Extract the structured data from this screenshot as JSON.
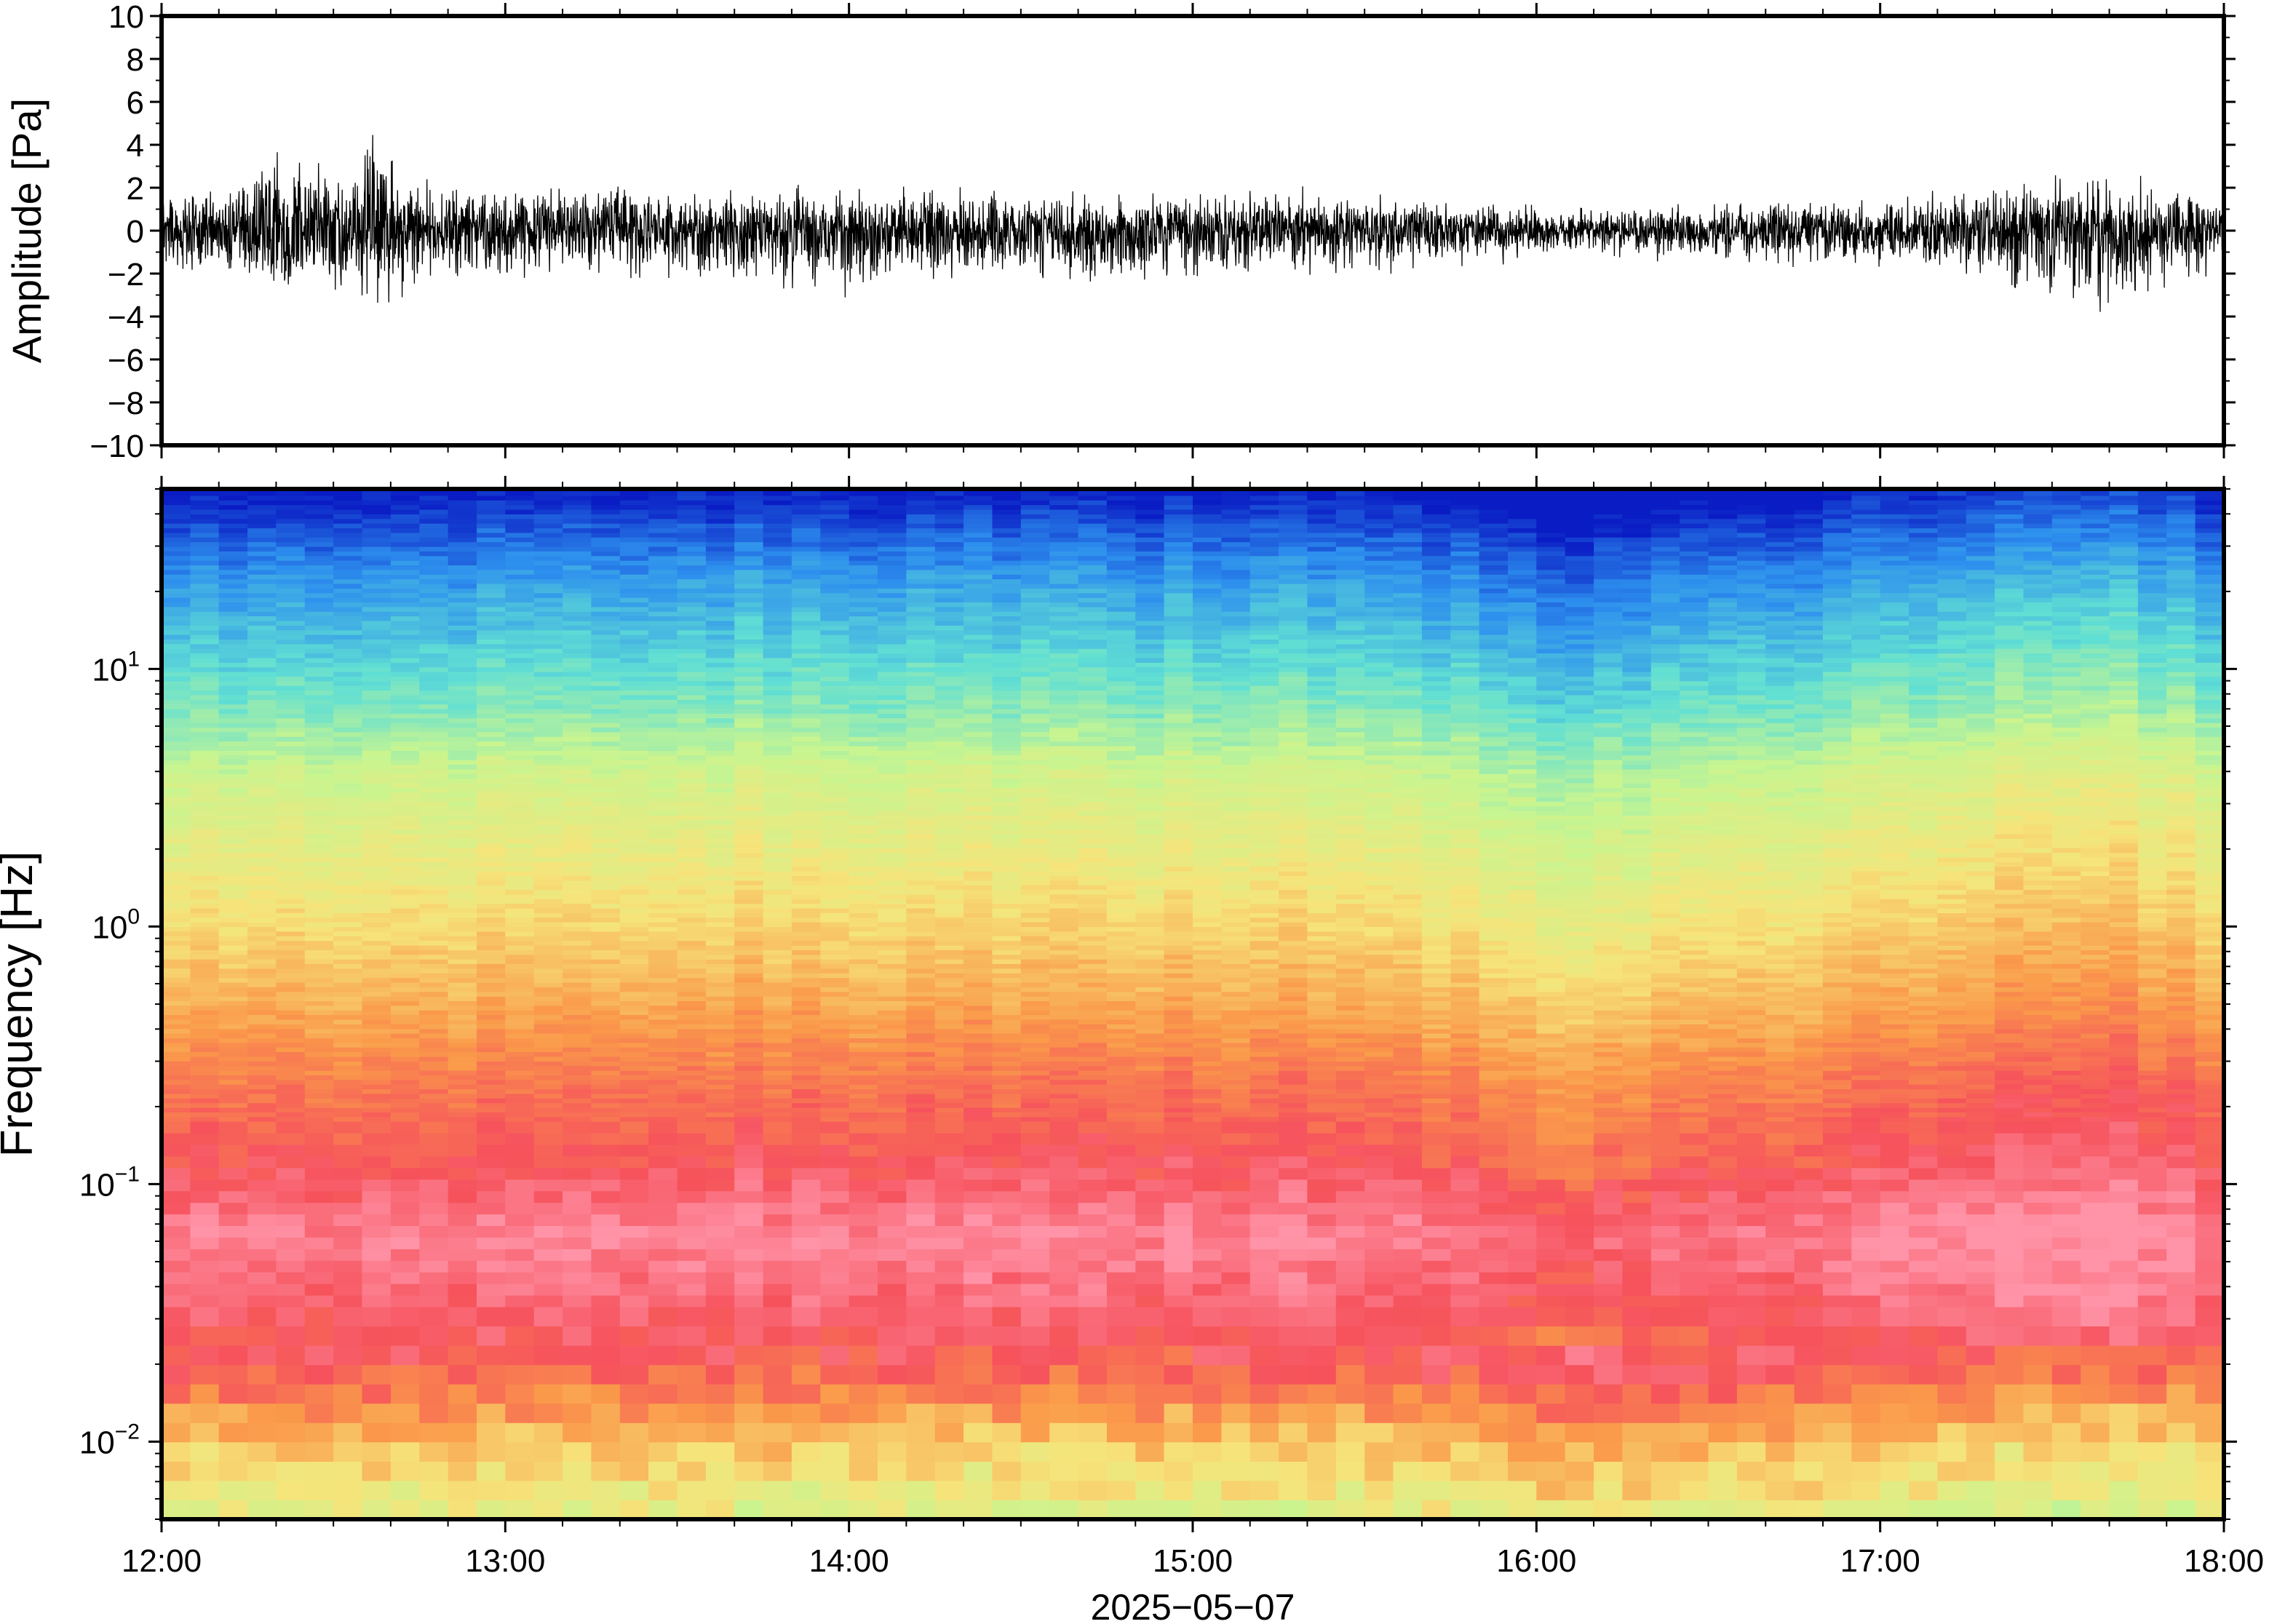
{
  "chart_data": [
    {
      "type": "line",
      "panel": "waveform",
      "ylabel": "Amplitude [Pa]",
      "ylim": [
        -10,
        10
      ],
      "yticks": [
        -10,
        -8,
        -6,
        -4,
        -2,
        0,
        2,
        4,
        6,
        8,
        10
      ],
      "ytick_labels": [
        "−10",
        "−8",
        "−6",
        "−4",
        "−2",
        "0",
        "2",
        "4",
        "6",
        "8",
        "10"
      ],
      "xlim": [
        "12:00",
        "18:00"
      ],
      "envelope": {
        "x": [
          "12:00",
          "12:15",
          "12:20",
          "12:30",
          "12:38",
          "12:45",
          "13:00",
          "13:15",
          "13:30",
          "13:45",
          "14:00",
          "14:15",
          "14:30",
          "14:45",
          "15:00",
          "15:15",
          "15:30",
          "15:45",
          "16:00",
          "16:15",
          "16:30",
          "16:45",
          "17:00",
          "17:15",
          "17:25",
          "17:40",
          "17:50",
          "18:00"
        ],
        "max": [
          1.8,
          2.4,
          5.0,
          3.0,
          5.4,
          2.6,
          2.3,
          2.2,
          2.0,
          2.0,
          2.4,
          2.2,
          2.1,
          2.0,
          2.0,
          2.1,
          2.0,
          1.6,
          1.3,
          1.2,
          1.4,
          1.5,
          1.7,
          2.0,
          2.6,
          3.3,
          2.3,
          1.5
        ],
        "min": [
          -2.0,
          -2.6,
          -3.4,
          -3.1,
          -3.8,
          -2.7,
          -2.5,
          -2.4,
          -2.5,
          -2.5,
          -3.6,
          -2.6,
          -2.4,
          -2.5,
          -2.4,
          -2.6,
          -2.2,
          -1.8,
          -1.5,
          -1.4,
          -1.6,
          -1.7,
          -1.9,
          -2.2,
          -3.4,
          -4.4,
          -2.7,
          -2.0
        ]
      }
    },
    {
      "type": "heatmap",
      "panel": "spectrogram",
      "ylabel": "Frequency [Hz]",
      "yscale": "log",
      "ylim": [
        0.005,
        50
      ],
      "yticks": [
        0.01,
        0.1,
        1,
        10
      ],
      "ytick_base": "10",
      "ytick_exponents": [
        "−2",
        "−1",
        "0",
        "1"
      ],
      "xlabel": "2025−05−07",
      "xticks": [
        "12:00",
        "13:00",
        "14:00",
        "15:00",
        "16:00",
        "17:00",
        "18:00"
      ],
      "colormap": [
        "#ff94a8",
        "#f6525c",
        "#fa9a4a",
        "#f6e47a",
        "#c8f590",
        "#60dfd4",
        "#2d8fee",
        "#0a1cc4"
      ],
      "level_profile": {
        "log10_freq": [
          -2.3,
          -2.0,
          -1.75,
          -1.5,
          -1.2,
          -0.9,
          -0.6,
          -0.3,
          0.0,
          0.3,
          0.6,
          0.85,
          1.1,
          1.35,
          1.5,
          1.7
        ],
        "level": [
          3.5,
          2.6,
          1.3,
          0.7,
          0.2,
          1.0,
          1.5,
          2.2,
          2.8,
          3.3,
          3.8,
          4.6,
          5.2,
          5.8,
          6.3,
          7.0
        ]
      }
    }
  ]
}
